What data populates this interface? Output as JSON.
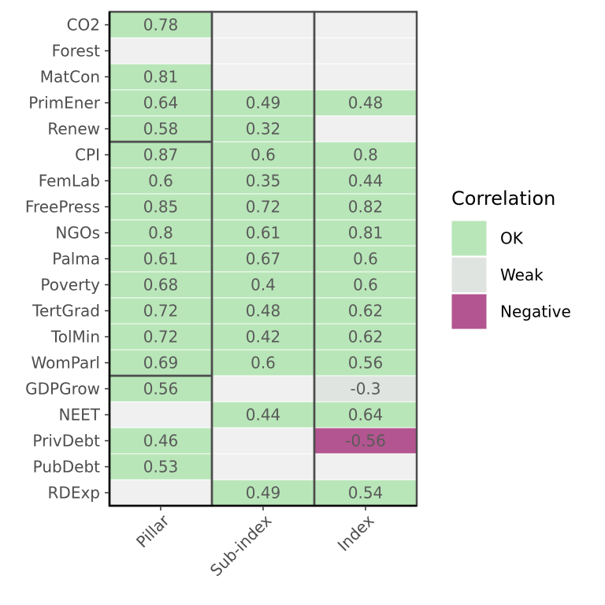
{
  "chart_data": {
    "type": "heatmap",
    "title": "",
    "xlabel": "",
    "ylabel": "",
    "columns": [
      "Pillar",
      "Sub-index",
      "Index"
    ],
    "rows": [
      "CO2",
      "Forest",
      "MatCon",
      "PrimEner",
      "Renew",
      "CPI",
      "FemLab",
      "FreePress",
      "NGOs",
      "Palma",
      "Poverty",
      "TertGrad",
      "TolMin",
      "WomParl",
      "GDPGrow",
      "NEET",
      "PrivDebt",
      "PubDebt",
      "RDExp"
    ],
    "values": [
      [
        0.78,
        null,
        null
      ],
      [
        null,
        null,
        null
      ],
      [
        0.81,
        null,
        null
      ],
      [
        0.64,
        0.49,
        0.48
      ],
      [
        0.58,
        0.32,
        null
      ],
      [
        0.87,
        0.6,
        0.8
      ],
      [
        0.6,
        0.35,
        0.44
      ],
      [
        0.85,
        0.72,
        0.82
      ],
      [
        0.8,
        0.61,
        0.81
      ],
      [
        0.61,
        0.67,
        0.6
      ],
      [
        0.68,
        0.4,
        0.6
      ],
      [
        0.72,
        0.48,
        0.62
      ],
      [
        0.72,
        0.42,
        0.62
      ],
      [
        0.69,
        0.6,
        0.56
      ],
      [
        0.56,
        null,
        -0.3
      ],
      [
        null,
        0.44,
        0.64
      ],
      [
        0.46,
        null,
        -0.56
      ],
      [
        0.53,
        null,
        null
      ],
      [
        null,
        0.49,
        0.54
      ]
    ],
    "categories_matrix": [
      [
        "OK",
        null,
        null
      ],
      [
        null,
        null,
        null
      ],
      [
        "OK",
        null,
        null
      ],
      [
        "OK",
        "OK",
        "OK"
      ],
      [
        "OK",
        "OK",
        null
      ],
      [
        "OK",
        "OK",
        "OK"
      ],
      [
        "OK",
        "OK",
        "OK"
      ],
      [
        "OK",
        "OK",
        "OK"
      ],
      [
        "OK",
        "OK",
        "OK"
      ],
      [
        "OK",
        "OK",
        "OK"
      ],
      [
        "OK",
        "OK",
        "OK"
      ],
      [
        "OK",
        "OK",
        "OK"
      ],
      [
        "OK",
        "OK",
        "OK"
      ],
      [
        "OK",
        "OK",
        "OK"
      ],
      [
        "OK",
        null,
        "Weak"
      ],
      [
        null,
        "OK",
        "OK"
      ],
      [
        "OK",
        null,
        "Negative"
      ],
      [
        "OK",
        null,
        null
      ],
      [
        null,
        "OK",
        "OK"
      ]
    ],
    "group_boxes": [
      {
        "column": 0,
        "row_start": 0,
        "row_end": 4
      },
      {
        "column": 0,
        "row_start": 5,
        "row_end": 13
      },
      {
        "column": 0,
        "row_start": 14,
        "row_end": 18
      },
      {
        "column": 1,
        "row_start": 0,
        "row_end": 18
      },
      {
        "column": 2,
        "row_start": 0,
        "row_end": 18
      }
    ],
    "legend": {
      "title": "Correlation",
      "position": "right",
      "items": [
        {
          "label": "OK",
          "color": "#b8e6b8"
        },
        {
          "label": "Weak",
          "color": "#e0e4e0"
        },
        {
          "label": "Negative",
          "color": "#b35590"
        }
      ]
    },
    "colors": {
      "empty": "#f0f0f0",
      "OK": "#b8e6b8",
      "Weak": "#e0e4e0",
      "Negative": "#b35590",
      "box": "#4d4d4d",
      "axis": "#000000"
    }
  }
}
